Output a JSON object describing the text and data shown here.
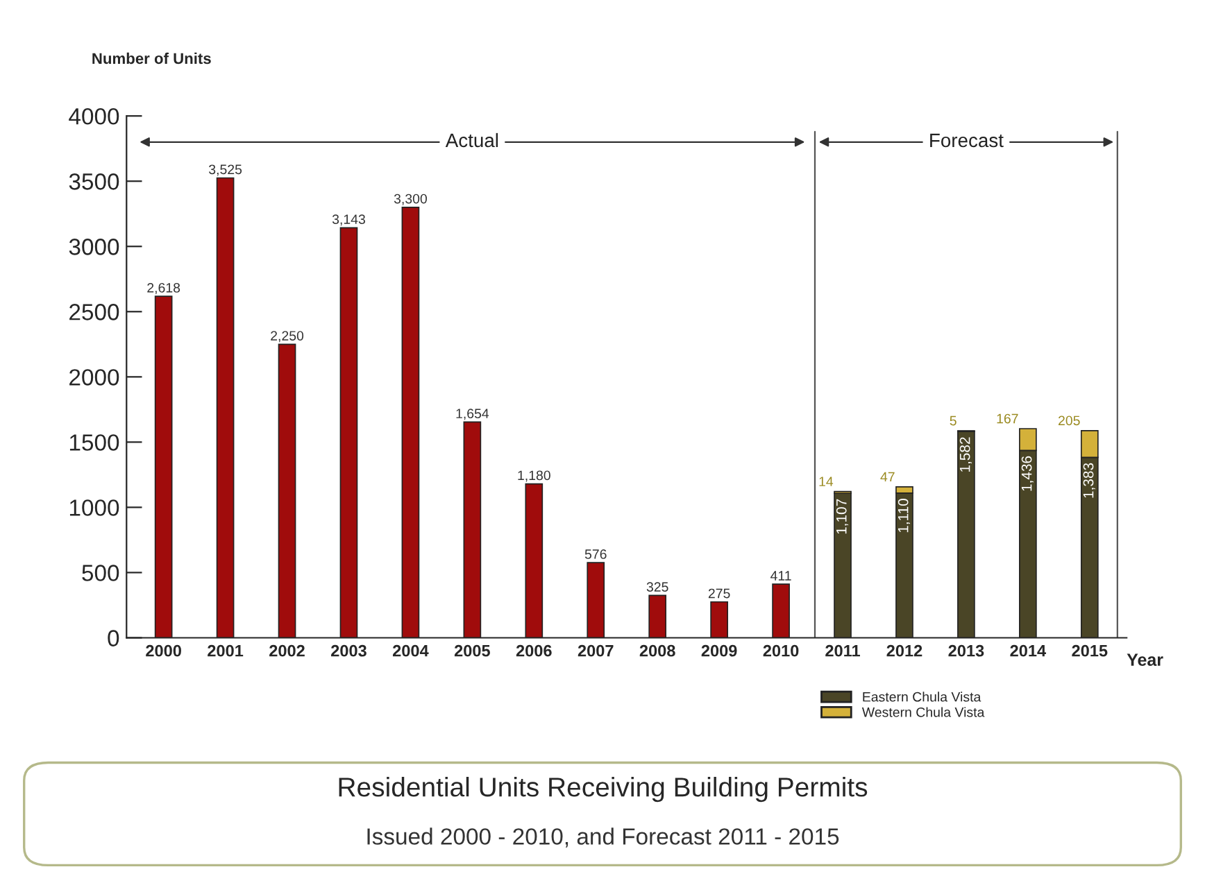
{
  "chart_data": {
    "type": "bar",
    "title": "Residential Units Receiving Building Permits",
    "subtitle": "Issued 2000 - 2010, and Forecast 2011 - 2015",
    "ylabel": "Number of Units",
    "xlabel": "Year",
    "categories": [
      "2000",
      "2001",
      "2002",
      "2003",
      "2004",
      "2005",
      "2006",
      "2007",
      "2008",
      "2009",
      "2010",
      "2011",
      "2012",
      "2013",
      "2014",
      "2015"
    ],
    "stacked": true,
    "series": [
      {
        "color": "#a00c0c",
        "values": [
          2618,
          3525,
          2250,
          3143,
          3300,
          1654,
          1180,
          576,
          325,
          275,
          411,
          null,
          null,
          null,
          null,
          null
        ],
        "value_labels": [
          "2,618",
          "3,525",
          "2,250",
          "3,143",
          "3,300",
          "1,654",
          "1,180",
          "576",
          "325",
          "275",
          "411",
          null,
          null,
          null,
          null,
          null
        ]
      },
      {
        "name": "Eastern Chula Vista",
        "color": "#4a4526",
        "values": [
          null,
          null,
          null,
          null,
          null,
          null,
          null,
          null,
          null,
          null,
          null,
          1107,
          1110,
          1582,
          1436,
          1383
        ],
        "value_labels": [
          null,
          null,
          null,
          null,
          null,
          null,
          null,
          null,
          null,
          null,
          null,
          "1,107",
          "1,110",
          "1,582",
          "1,436",
          "1,383"
        ]
      },
      {
        "name": "Western Chula Vista",
        "color": "#d4b13a",
        "values": [
          null,
          null,
          null,
          null,
          null,
          null,
          null,
          null,
          null,
          null,
          null,
          14,
          47,
          5,
          167,
          205
        ],
        "value_labels": [
          null,
          null,
          null,
          null,
          null,
          null,
          null,
          null,
          null,
          null,
          null,
          "14",
          "47",
          "5",
          "167",
          "205"
        ]
      }
    ],
    "annotations": [
      "Actual",
      "Forecast"
    ],
    "ylim": [
      0,
      4000
    ],
    "yticks": [
      0,
      500,
      1000,
      1500,
      2000,
      2500,
      3000,
      3500,
      4000
    ],
    "grid": false,
    "legend": "bottom right"
  }
}
